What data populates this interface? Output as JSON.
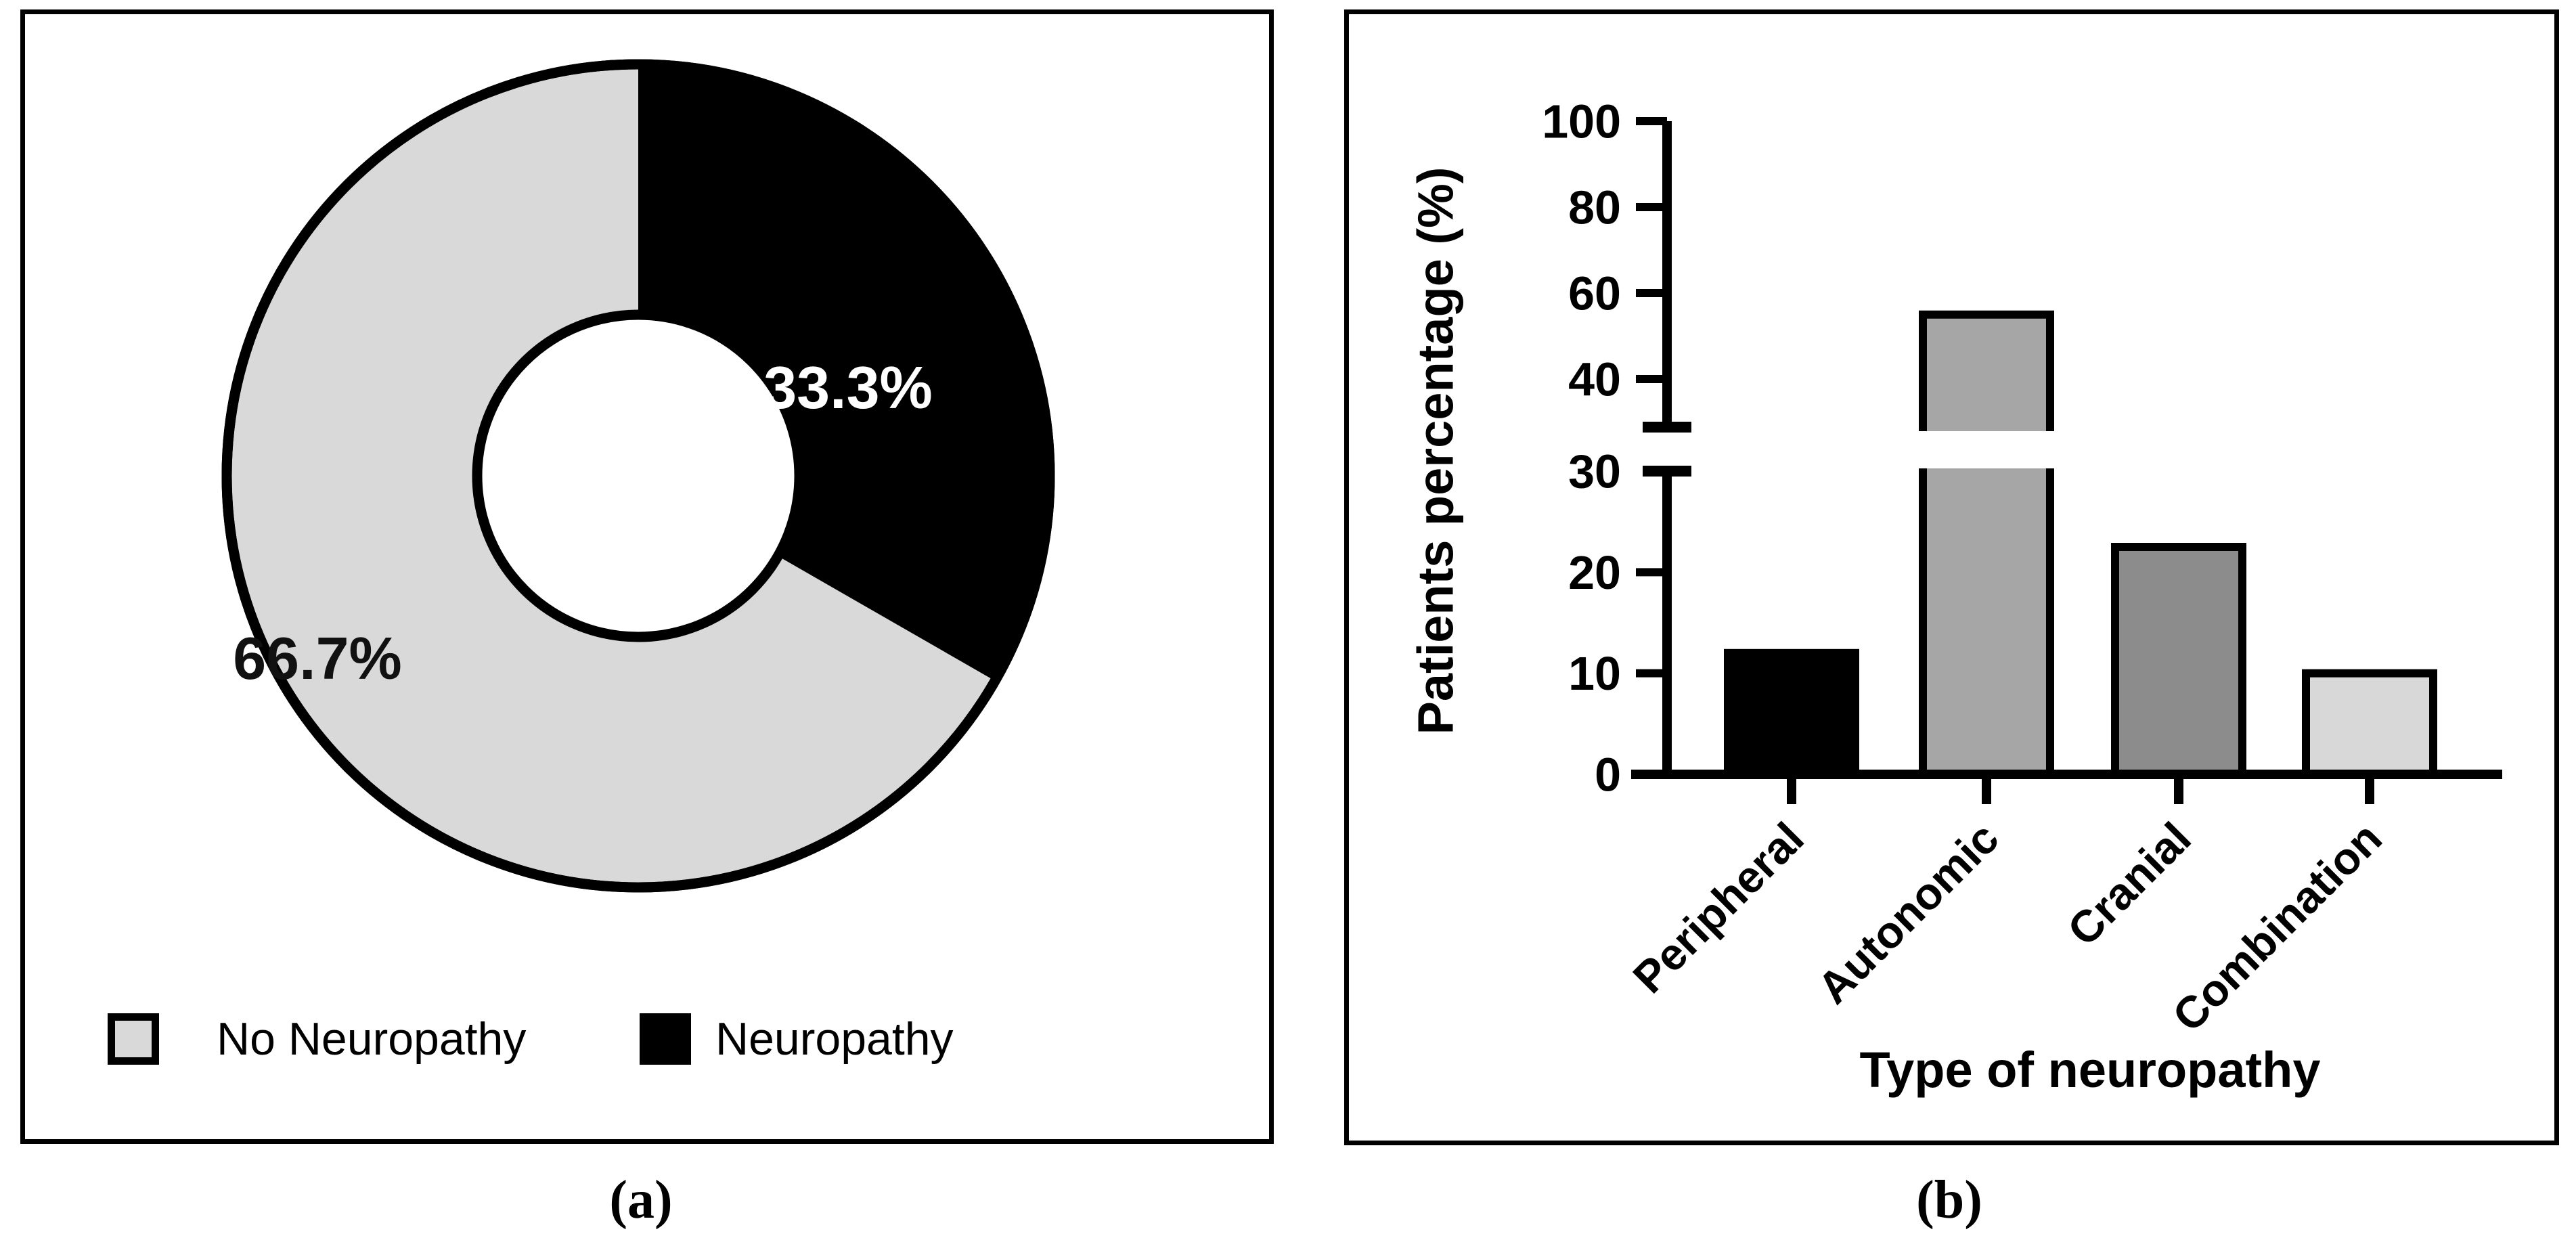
{
  "panel_a": {
    "caption": "(a)",
    "slice_labels": {
      "no_neuropathy_pct": "66.7%",
      "neuropathy_pct": "33.3%"
    },
    "legend": [
      {
        "label": "No Neuropathy",
        "color": "#d9d9d9"
      },
      {
        "label": "Neuropathy",
        "color": "#000000"
      }
    ]
  },
  "panel_b": {
    "caption": "(b)",
    "ylabel": "Patients percentage (%)",
    "xlabel": "Type of neuropathy"
  },
  "chart_data": [
    {
      "type": "pie",
      "subtype": "donut",
      "labels": [
        "No Neuropathy",
        "Neuropathy"
      ],
      "values": [
        66.7,
        33.3
      ],
      "colors": [
        "#d9d9d9",
        "#000000"
      ],
      "annotations": [
        "66.7%",
        "33.3%"
      ],
      "start_angle_deg": 0,
      "direction": "clockwise",
      "legend_position": "bottom"
    },
    {
      "type": "bar",
      "categories": [
        "Peripheral",
        "Autonomic",
        "Cranial",
        "Combination"
      ],
      "values": [
        12,
        55,
        22.5,
        10
      ],
      "colors": [
        "#000000",
        "#a6a6a6",
        "#8c8c8c",
        "#d8d8d8"
      ],
      "xlabel": "Type of neuropathy",
      "ylabel": "Patients percentage (%)",
      "broken_axis": {
        "lower_ticks": [
          0,
          10,
          20,
          30
        ],
        "upper_ticks": [
          40,
          60,
          80,
          100
        ],
        "break_between": [
          30,
          40
        ]
      },
      "grid": false,
      "bar_outline_color": "#000000"
    }
  ]
}
